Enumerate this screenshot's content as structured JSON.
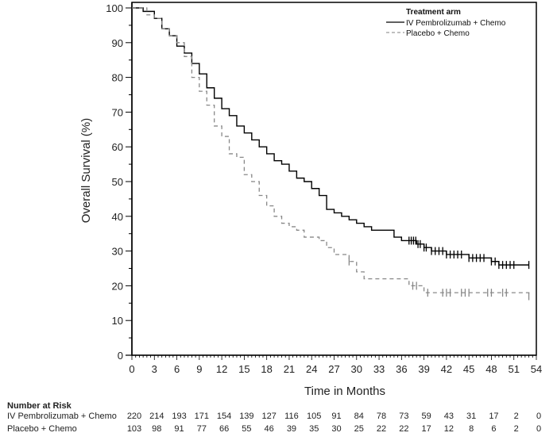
{
  "chart_data": {
    "type": "line",
    "subtype": "kaplan-meier",
    "title": "",
    "xlabel": "Time in Months",
    "ylabel": "Overall Survival (%)",
    "xlim": [
      0,
      54
    ],
    "ylim": [
      0,
      100
    ],
    "xticks": [
      0,
      3,
      6,
      9,
      12,
      15,
      18,
      21,
      24,
      27,
      30,
      33,
      36,
      39,
      42,
      45,
      48,
      51,
      54
    ],
    "yticks": [
      0,
      10,
      20,
      30,
      40,
      50,
      60,
      70,
      80,
      90,
      100
    ],
    "grid": false,
    "legend": {
      "title": "Treatment arm",
      "placement": "top-right",
      "entries": [
        "IV Pembrolizumab + Chemo",
        "Placebo + Chemo"
      ]
    },
    "series": [
      {
        "name": "IV Pembrolizumab + Chemo",
        "style": "solid",
        "color": "#000000",
        "x": [
          0,
          1.5,
          3,
          3.5,
          4,
          5,
          6,
          7,
          8,
          9,
          10,
          11,
          12,
          13,
          14,
          15,
          16,
          17,
          18,
          19,
          20,
          21,
          22,
          23,
          24,
          25,
          26,
          27,
          28,
          29,
          30,
          31,
          32,
          33,
          35,
          36,
          37,
          38,
          39,
          40,
          42,
          45,
          47,
          48,
          49,
          53
        ],
        "y": [
          100,
          99,
          97,
          97,
          94,
          92,
          89,
          87,
          84,
          81,
          77,
          74,
          71,
          69,
          66,
          64,
          62,
          60,
          58,
          56,
          55,
          53,
          51,
          50,
          48,
          46,
          42,
          41,
          40,
          39,
          38,
          37,
          36,
          36,
          34,
          33,
          33,
          32,
          31,
          30,
          29,
          28,
          28,
          27,
          26,
          26
        ],
        "censor_x": [
          37,
          37.3,
          37.6,
          37.9,
          38.2,
          38.5,
          39,
          39.3,
          40,
          40.5,
          41,
          41.5,
          42,
          42.5,
          43,
          43.5,
          44,
          45,
          45.5,
          46,
          46.5,
          47,
          48,
          48.5,
          49,
          49.5,
          50,
          50.5,
          51,
          53
        ]
      },
      {
        "name": "Placebo + Chemo",
        "style": "dashed",
        "color": "#888888",
        "x": [
          0,
          2,
          3,
          4,
          5,
          6,
          7,
          8,
          9,
          10,
          11,
          12,
          13,
          14,
          15,
          16,
          17,
          18,
          19,
          20,
          21,
          22,
          23,
          25,
          26,
          27,
          29,
          30,
          31,
          36,
          37,
          38,
          39,
          53
        ],
        "y": [
          100,
          98,
          97,
          94,
          92,
          90,
          86,
          80,
          76,
          72,
          66,
          63,
          58,
          57,
          52,
          50,
          46,
          43,
          40,
          38,
          37,
          36,
          34,
          33,
          31,
          29,
          27,
          24,
          22,
          22,
          20,
          20,
          18,
          17
        ],
        "censor_x": [
          29,
          37.5,
          38,
          39.5,
          41.5,
          42,
          42.5,
          44,
          44.5,
          45,
          47.5,
          48,
          49.5,
          50,
          53
        ]
      }
    ]
  },
  "risk_table": {
    "title": "Number at Risk",
    "times": [
      0,
      3,
      6,
      9,
      12,
      15,
      18,
      21,
      24,
      27,
      30,
      33,
      36,
      39,
      42,
      45,
      48,
      51,
      54
    ],
    "rows": [
      {
        "label": "IV Pembrolizumab + Chemo",
        "values": [
          "220",
          "214",
          "193",
          "171",
          "154",
          "139",
          "127",
          "116",
          "105",
          "91",
          "84",
          "78",
          "73",
          "59",
          "43",
          "31",
          "17",
          "2",
          "0"
        ]
      },
      {
        "label": "Placebo + Chemo",
        "values": [
          "103",
          "98",
          "91",
          "77",
          "66",
          "55",
          "46",
          "39",
          "35",
          "30",
          "25",
          "22",
          "22",
          "17",
          "12",
          "8",
          "6",
          "2",
          "0"
        ]
      }
    ]
  }
}
